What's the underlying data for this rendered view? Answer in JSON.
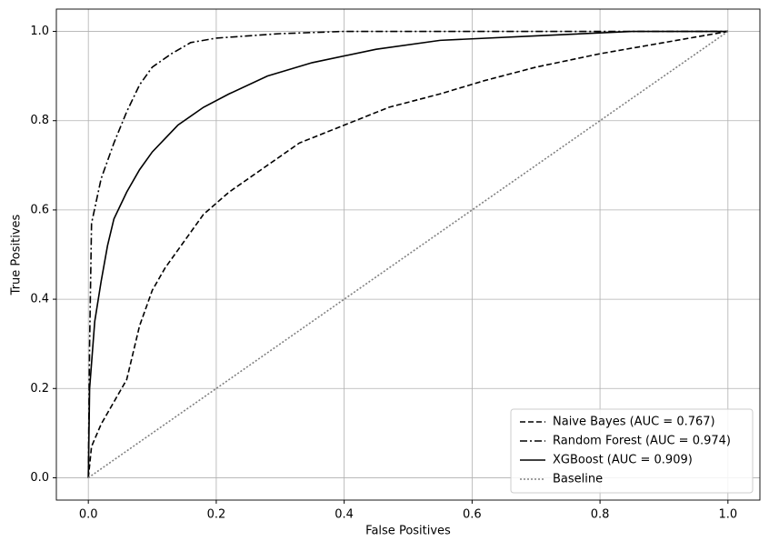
{
  "chart_data": {
    "type": "line",
    "xlabel": "False Positives",
    "ylabel": "True Positives",
    "xlim": [
      -0.05,
      1.05
    ],
    "ylim": [
      -0.05,
      1.05
    ],
    "xticks": [
      {
        "value": 0,
        "label": "0.0"
      },
      0.2,
      0.4,
      0.6,
      0.8,
      {
        "value": 1,
        "label": "1.0"
      }
    ],
    "yticks": [
      {
        "value": 0,
        "label": "0.0"
      },
      0.2,
      0.4,
      0.6,
      0.8,
      {
        "value": 1,
        "label": "1.0"
      }
    ],
    "grid": true,
    "legend": "lower right",
    "series": [
      {
        "name": "Naive Bayes (AUC = 0.767)",
        "color": "#000000",
        "style": "dashed",
        "x": [
          0,
          0.005,
          0.02,
          0.04,
          0.06,
          0.07,
          0.08,
          0.1,
          0.12,
          0.15,
          0.18,
          0.22,
          0.27,
          0.33,
          0.4,
          0.47,
          0.55,
          0.62,
          0.7,
          0.8,
          0.9,
          1
        ],
        "values": [
          0,
          0.07,
          0.12,
          0.17,
          0.22,
          0.28,
          0.34,
          0.42,
          0.47,
          0.53,
          0.59,
          0.64,
          0.69,
          0.75,
          0.79,
          0.83,
          0.86,
          0.89,
          0.92,
          0.95,
          0.975,
          1
        ]
      },
      {
        "name": "Random Forest (AUC = 0.974)",
        "color": "#000000",
        "style": "dashdot",
        "x": [
          0,
          0.002,
          0.005,
          0.02,
          0.04,
          0.06,
          0.08,
          0.1,
          0.13,
          0.16,
          0.2,
          0.3,
          0.4,
          1
        ],
        "values": [
          0,
          0.3,
          0.57,
          0.67,
          0.75,
          0.82,
          0.88,
          0.92,
          0.95,
          0.975,
          0.985,
          0.995,
          1,
          1
        ]
      },
      {
        "name": "XGBoost (AUC = 0.909)",
        "color": "#000000",
        "style": "solid",
        "x": [
          0,
          0.002,
          0.01,
          0.02,
          0.03,
          0.04,
          0.06,
          0.08,
          0.1,
          0.14,
          0.18,
          0.22,
          0.28,
          0.35,
          0.45,
          0.55,
          0.7,
          0.85,
          1
        ],
        "values": [
          0,
          0.2,
          0.35,
          0.44,
          0.52,
          0.58,
          0.64,
          0.69,
          0.73,
          0.79,
          0.83,
          0.86,
          0.9,
          0.93,
          0.96,
          0.98,
          0.99,
          1,
          1
        ]
      },
      {
        "name": "Baseline",
        "color": "#808080",
        "style": "dotted",
        "x": [
          0,
          1
        ],
        "values": [
          0,
          1
        ]
      }
    ]
  }
}
